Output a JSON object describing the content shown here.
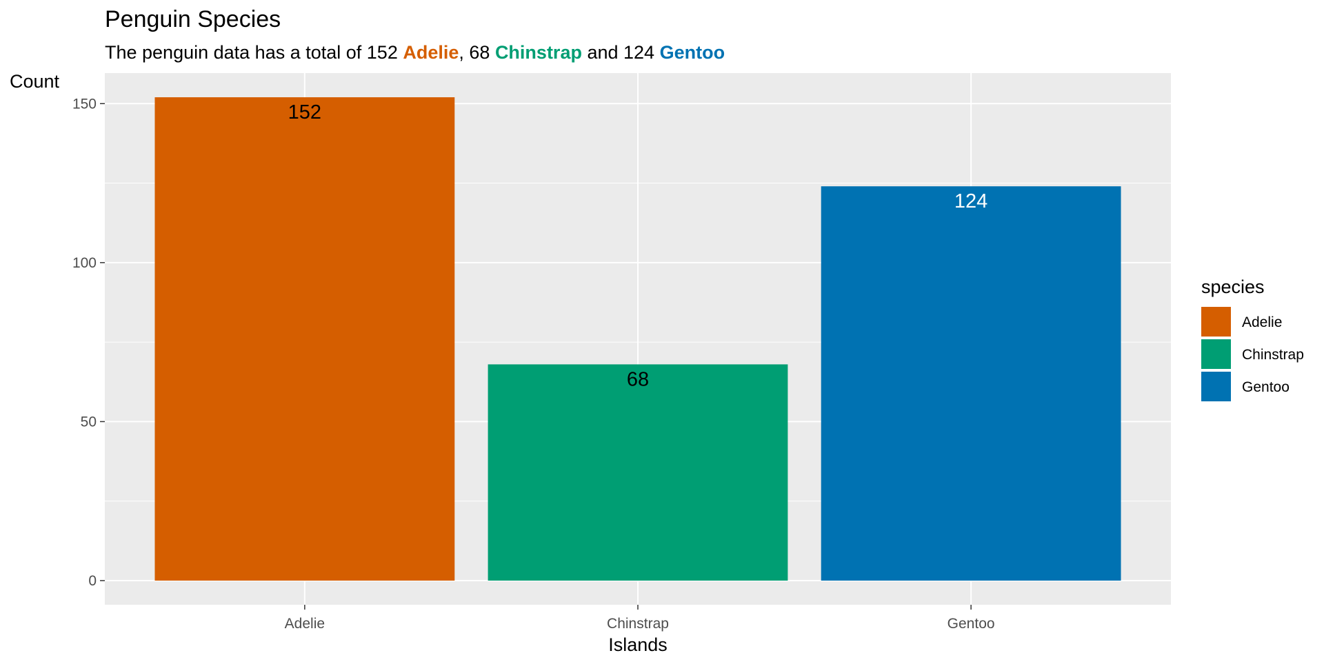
{
  "colors": {
    "Adelie": "#D55E00",
    "Chinstrap": "#009E73",
    "Gentoo": "#0072B2",
    "panel_background": "#EBEBEB",
    "grid": "#FFFFFF",
    "tick_text": "#4D4D4D"
  },
  "chart_data": {
    "type": "bar",
    "title": "Penguin Species",
    "subtitle": {
      "prefix": "The penguin data has a total of ",
      "n1": "152 ",
      "s1": "Adelie",
      "sep1": ", ",
      "n2": "68 ",
      "s2": "Chinstrap",
      "sep2": " and ",
      "n3": "124 ",
      "s3": "Gentoo"
    },
    "xlabel": "Islands",
    "ylabel": "Count",
    "categories": [
      "Adelie",
      "Chinstrap",
      "Gentoo"
    ],
    "values": [
      152,
      68,
      124
    ],
    "data_labels": [
      "152",
      "68",
      "124"
    ],
    "data_label_colors": [
      "#000000",
      "#000000",
      "#FFFFFF"
    ],
    "ylim": [
      -7.6,
      159.6
    ],
    "yticks": [
      0,
      50,
      100,
      150
    ],
    "ytick_labels": [
      "0",
      "50",
      "100",
      "150"
    ],
    "grid": true,
    "legend": {
      "title": "species",
      "position": "right",
      "entries": [
        "Adelie",
        "Chinstrap",
        "Gentoo"
      ]
    }
  }
}
